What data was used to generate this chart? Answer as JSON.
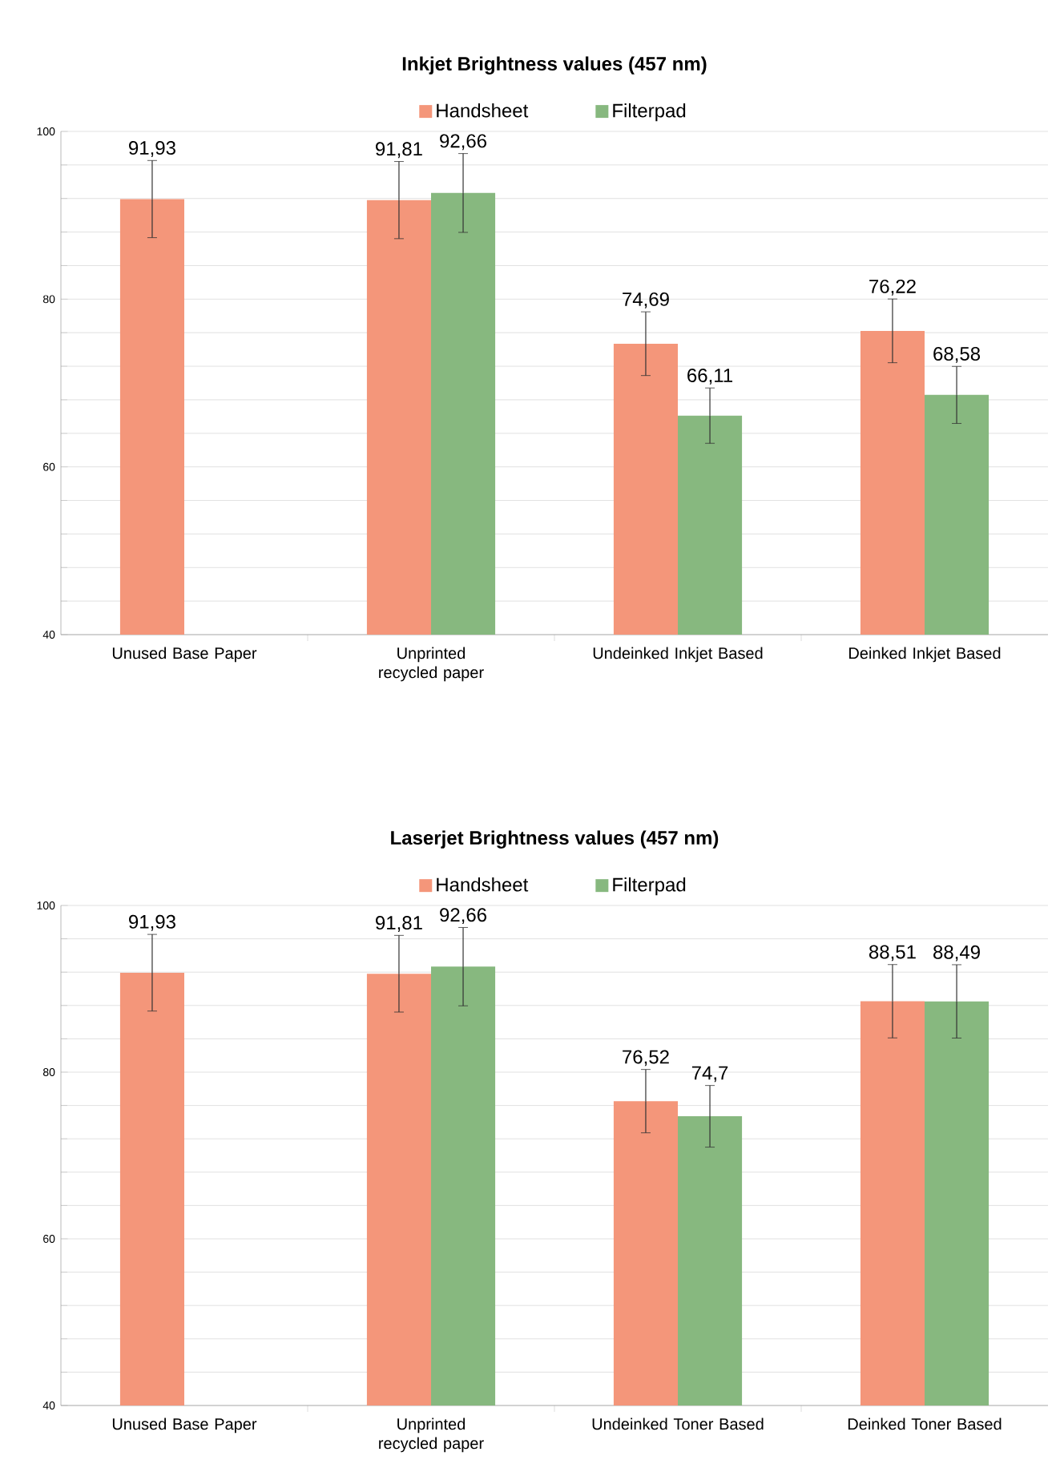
{
  "chart_data": [
    {
      "type": "bar",
      "title": "Inkjet Brightness values (457 nm)",
      "categories": [
        "Unused Base Paper",
        "Unprinted recycled paper",
        "Undeinked Inkjet Based",
        "Deinked Inkjet Based"
      ],
      "ylim": [
        40,
        100
      ],
      "yticks": [
        40,
        60,
        80,
        100
      ],
      "grid": "y",
      "legend": "top",
      "series": [
        {
          "name": "Handsheet",
          "color": "#f4967a",
          "values": [
            91.93,
            91.81,
            74.69,
            76.22
          ],
          "errors": [
            4.6,
            4.6,
            3.8,
            3.8
          ],
          "value_labels": [
            "91,93",
            "91,81",
            "74,69",
            "76,22"
          ]
        },
        {
          "name": "Filterpad",
          "color": "#87b87f",
          "values": [
            null,
            92.66,
            66.11,
            68.58
          ],
          "errors": [
            null,
            4.7,
            3.3,
            3.4
          ],
          "value_labels": [
            null,
            "92,66",
            "66,11",
            "68,58"
          ]
        }
      ]
    },
    {
      "type": "bar",
      "title": "Laserjet Brightness values (457 nm)",
      "categories": [
        "Unused Base Paper",
        "Unprinted recycled paper",
        "Undeinked Toner Based",
        "Deinked Toner Based"
      ],
      "ylim": [
        40,
        100
      ],
      "yticks": [
        40,
        60,
        80,
        100
      ],
      "grid": "y",
      "legend": "top",
      "series": [
        {
          "name": "Handsheet",
          "color": "#f4967a",
          "values": [
            91.93,
            91.81,
            76.52,
            88.51
          ],
          "errors": [
            4.6,
            4.6,
            3.8,
            4.4
          ],
          "value_labels": [
            "91,93",
            "91,81",
            "76,52",
            "88,51"
          ]
        },
        {
          "name": "Filterpad",
          "color": "#87b87f",
          "values": [
            null,
            92.66,
            74.7,
            88.49
          ],
          "errors": [
            null,
            4.7,
            3.7,
            4.4
          ],
          "value_labels": [
            null,
            "92,66",
            "74,7",
            "88,49"
          ]
        }
      ]
    }
  ]
}
